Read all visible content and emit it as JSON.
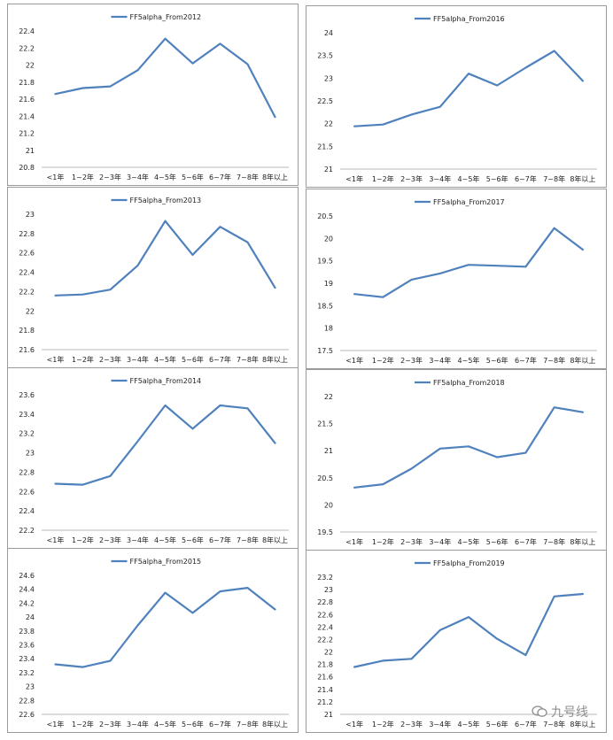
{
  "series_color": "#4f81bd",
  "watermark": {
    "text": "九号线",
    "icon": "chat-bubbles-icon"
  },
  "chart_data": [
    {
      "type": "line",
      "series": [
        {
          "name": "FF5alpha_From2012",
          "values": [
            21.66,
            21.73,
            21.75,
            21.94,
            22.31,
            22.02,
            22.25,
            22.01,
            21.39
          ]
        }
      ],
      "categories": [
        "<1年",
        "1~2年",
        "2~3年",
        "3~4年",
        "4~5年",
        "5~6年",
        "6~7年",
        "7~8年",
        "8年以上"
      ],
      "ylim": [
        20.8,
        22.4
      ],
      "ystep": 0.2,
      "decimals": 1,
      "legend": "top"
    },
    {
      "type": "line",
      "series": [
        {
          "name": "FF5alpha_From2016",
          "values": [
            21.94,
            21.98,
            22.2,
            22.37,
            23.1,
            22.84,
            23.23,
            23.6,
            22.94
          ]
        }
      ],
      "categories": [
        "<1年",
        "1~2年",
        "2~3年",
        "3~4年",
        "4~5年",
        "5~6年",
        "6~7年",
        "7~8年",
        "8年以上"
      ],
      "ylim": [
        21,
        24
      ],
      "ystep": 0.5,
      "decimals": 1,
      "legend": "top"
    },
    {
      "type": "line",
      "series": [
        {
          "name": "FF5alpha_From2013",
          "values": [
            22.16,
            22.17,
            22.22,
            22.47,
            22.93,
            22.58,
            22.87,
            22.71,
            22.24
          ]
        }
      ],
      "categories": [
        "<1年",
        "1~2年",
        "2~3年",
        "3~4年",
        "4~5年",
        "5~6年",
        "6~7年",
        "7~8年",
        "8年以上"
      ],
      "ylim": [
        21.6,
        23
      ],
      "ystep": 0.2,
      "decimals": 1,
      "legend": "top"
    },
    {
      "type": "line",
      "series": [
        {
          "name": "FF5alpha_From2017",
          "values": [
            18.76,
            18.69,
            19.08,
            19.22,
            19.41,
            19.39,
            19.37,
            20.23,
            19.75
          ]
        }
      ],
      "categories": [
        "<1年",
        "1~2年",
        "2~3年",
        "3~4年",
        "4~5年",
        "5~6年",
        "6~7年",
        "7~8年",
        "8年以上"
      ],
      "ylim": [
        17.5,
        20.5
      ],
      "ystep": 0.5,
      "decimals": 1,
      "legend": "top"
    },
    {
      "type": "line",
      "series": [
        {
          "name": "FF5alpha_From2014",
          "values": [
            22.68,
            22.67,
            22.76,
            23.12,
            23.49,
            23.25,
            23.49,
            23.46,
            23.1
          ]
        }
      ],
      "categories": [
        "<1年",
        "1~2年",
        "2~3年",
        "3~4年",
        "4~5年",
        "5~6年",
        "6~7年",
        "7~8年",
        "8年以上"
      ],
      "ylim": [
        22.2,
        23.6
      ],
      "ystep": 0.2,
      "decimals": 1,
      "legend": "top"
    },
    {
      "type": "line",
      "series": [
        {
          "name": "FF5alpha_From2018",
          "values": [
            20.32,
            20.38,
            20.67,
            21.04,
            21.08,
            20.88,
            20.96,
            21.8,
            21.71
          ]
        }
      ],
      "categories": [
        "<1年",
        "1~2年",
        "2~3年",
        "3~4年",
        "4~5年",
        "5~6年",
        "6~7年",
        "7~8年",
        "8年以上"
      ],
      "ylim": [
        19.5,
        22
      ],
      "ystep": 0.5,
      "decimals": 1,
      "legend": "top"
    },
    {
      "type": "line",
      "series": [
        {
          "name": "FF5alpha_From2015",
          "values": [
            23.32,
            23.28,
            23.37,
            23.88,
            24.35,
            24.06,
            24.37,
            24.42,
            24.11
          ]
        }
      ],
      "categories": [
        "<1年",
        "1~2年",
        "2~3年",
        "3~4年",
        "4~5年",
        "5~6年",
        "6~7年",
        "7~8年",
        "8年以上"
      ],
      "ylim": [
        22.6,
        24.6
      ],
      "ystep": 0.2,
      "decimals": 1,
      "legend": "top"
    },
    {
      "type": "line",
      "series": [
        {
          "name": "FF5alpha_From2019",
          "values": [
            21.76,
            21.86,
            21.89,
            22.35,
            22.56,
            22.21,
            21.95,
            22.89,
            22.93
          ]
        }
      ],
      "categories": [
        "<1年",
        "1~2年",
        "2~3年",
        "3~4年",
        "4~5年",
        "5~6年",
        "6~7年",
        "7~8年",
        "8年以上"
      ],
      "ylim": [
        21,
        23.2
      ],
      "ystep": 0.2,
      "decimals": 1,
      "legend": "top"
    }
  ]
}
